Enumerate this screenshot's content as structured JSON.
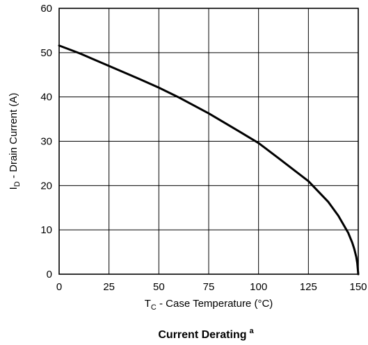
{
  "chart_data": {
    "type": "line",
    "title": "Current Derating",
    "title_superscript": "a",
    "xlabel": {
      "prefix": "T",
      "subscript": "C",
      "text": " - Case Temperature (°C)"
    },
    "ylabel": {
      "prefix": "I",
      "subscript": "D",
      "text": " - Drain Current (A)"
    },
    "xlim": [
      0,
      150
    ],
    "ylim": [
      0,
      60
    ],
    "x_ticks": [
      0,
      25,
      50,
      75,
      100,
      125,
      150
    ],
    "y_ticks": [
      0,
      10,
      20,
      30,
      40,
      50,
      60
    ],
    "grid": true,
    "legend": "none",
    "series": [
      {
        "color": "#000000",
        "x": [
          0,
          10,
          25,
          40,
          50,
          60,
          75,
          90,
          100,
          110,
          125,
          135,
          140,
          145,
          147,
          148,
          149,
          149.5,
          150
        ],
        "y": [
          51.6,
          49.9,
          47.0,
          44.1,
          42.1,
          39.9,
          36.3,
          32.3,
          29.6,
          26.2,
          21.0,
          16.3,
          13.2,
          9.3,
          7.1,
          5.7,
          3.9,
          2.5,
          0
        ]
      }
    ]
  }
}
